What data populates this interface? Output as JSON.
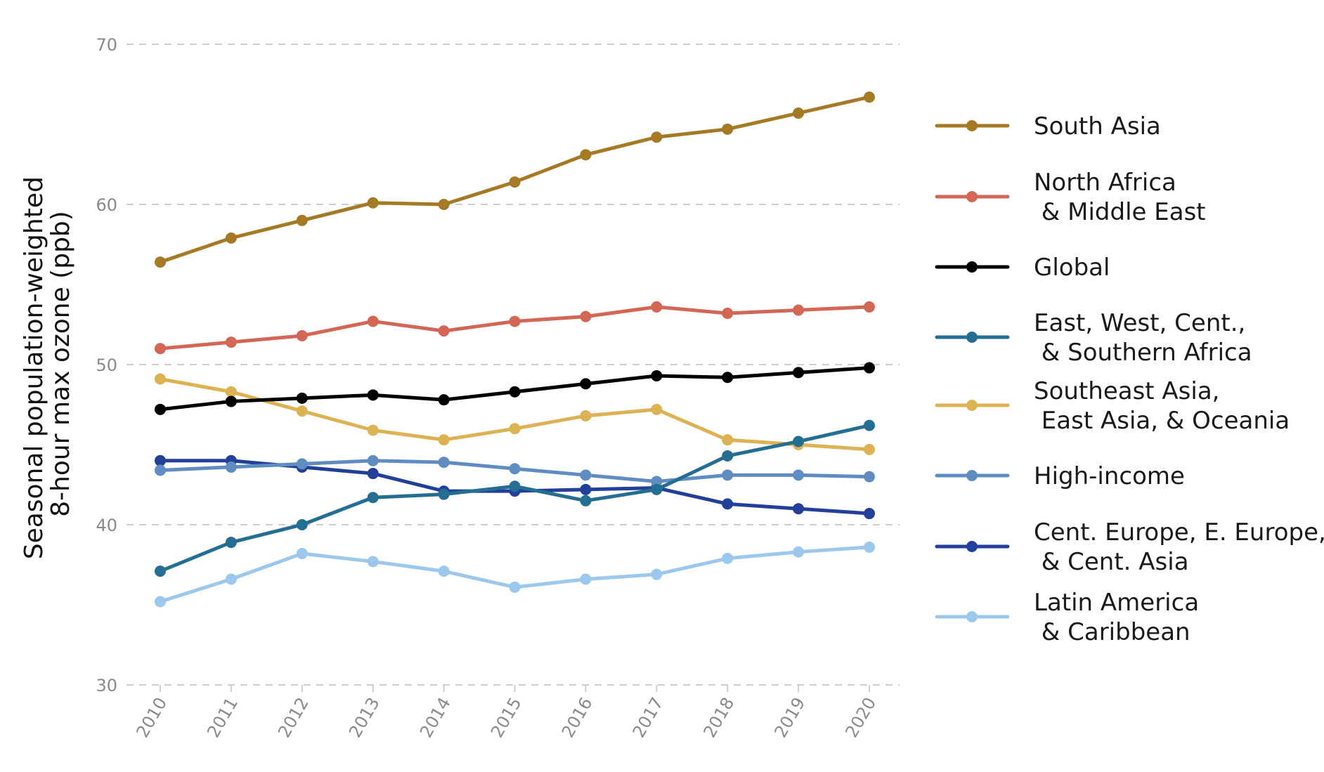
{
  "chart_data": {
    "type": "line",
    "title": "",
    "xlabel": "",
    "ylabel_lines": [
      "Seasonal population-weighted",
      "8-hour max ozone (ppb)"
    ],
    "x": [
      2010,
      2011,
      2012,
      2013,
      2014,
      2015,
      2016,
      2017,
      2018,
      2019,
      2020
    ],
    "ylim": [
      30,
      70
    ],
    "yticks": [
      30,
      40,
      50,
      60,
      70
    ],
    "grid": true,
    "legend_position": "right",
    "series": [
      {
        "name": "South Asia",
        "legend_lines": [
          "South Asia"
        ],
        "color": "#A67A25",
        "values": [
          56.4,
          57.9,
          59.0,
          60.1,
          60.0,
          61.4,
          63.1,
          64.2,
          64.7,
          65.7,
          66.7
        ]
      },
      {
        "name": "North Africa & Middle East",
        "legend_lines": [
          "North Africa",
          " & Middle East"
        ],
        "color": "#D46656",
        "values": [
          51.0,
          51.4,
          51.8,
          52.7,
          52.1,
          52.7,
          53.0,
          53.6,
          53.2,
          53.4,
          53.6
        ]
      },
      {
        "name": "Global",
        "legend_lines": [
          "Global"
        ],
        "color": "#000000",
        "values": [
          47.2,
          47.7,
          47.9,
          48.1,
          47.8,
          48.3,
          48.8,
          49.3,
          49.2,
          49.5,
          49.8
        ]
      },
      {
        "name": "East, West, Cent., & Southern Africa",
        "legend_lines": [
          "East, West, Cent.,",
          " & Southern Africa"
        ],
        "color": "#246E94",
        "values": [
          37.1,
          38.9,
          40.0,
          41.7,
          41.9,
          42.4,
          41.5,
          42.2,
          44.3,
          45.2,
          46.2
        ]
      },
      {
        "name": "Southeast Asia, East Asia, & Oceania",
        "legend_lines": [
          "Southeast Asia,",
          " East Asia, & Oceania"
        ],
        "color": "#DDB253",
        "values": [
          49.1,
          48.3,
          47.1,
          45.9,
          45.3,
          46.0,
          46.8,
          47.2,
          45.3,
          45.0,
          44.7
        ]
      },
      {
        "name": "High-income",
        "legend_lines": [
          "High-income"
        ],
        "color": "#5F8DC2",
        "values": [
          43.4,
          43.6,
          43.8,
          44.0,
          43.9,
          43.5,
          43.1,
          42.7,
          43.1,
          43.1,
          43.0
        ]
      },
      {
        "name": "Cent. Europe, E. Europe, & Cent. Asia",
        "legend_lines": [
          "Cent. Europe, E. Europe,",
          " & Cent. Asia"
        ],
        "color": "#223F9A",
        "values": [
          44.0,
          44.0,
          43.6,
          43.2,
          42.1,
          42.1,
          42.2,
          42.3,
          41.3,
          41.0,
          40.7
        ]
      },
      {
        "name": "Latin America & Caribbean",
        "legend_lines": [
          "Latin America",
          " & Caribbean"
        ],
        "color": "#9CC8EE",
        "values": [
          35.2,
          36.6,
          38.2,
          37.7,
          37.1,
          36.1,
          36.6,
          36.9,
          37.9,
          38.3,
          38.6
        ]
      }
    ]
  }
}
